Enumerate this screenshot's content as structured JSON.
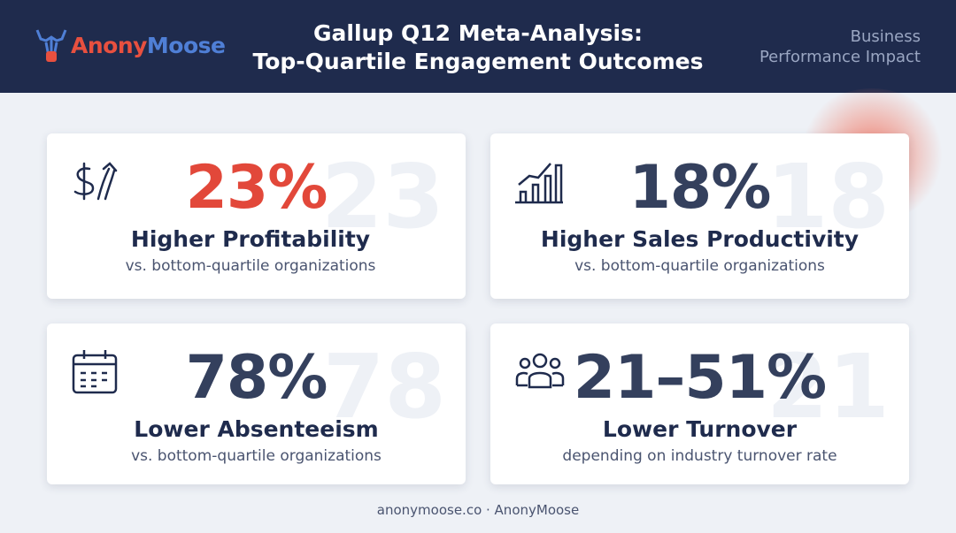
{
  "header": {
    "brand_first": "Anony",
    "brand_second": "Moose",
    "title_lines": [
      "Gallup Q12 Meta-Analysis:",
      "Top-Quartile Engagement Outcomes"
    ],
    "tag_lines": [
      "Business",
      "Performance Impact"
    ]
  },
  "cards": [
    {
      "stat": "23%",
      "watermark": "23",
      "label": "Higher Profitability",
      "sub": "vs. bottom-quartile organizations"
    },
    {
      "stat": "18%",
      "watermark": "18",
      "label": "Higher Sales Productivity",
      "sub": "vs. bottom-quartile organizations"
    },
    {
      "stat": "78%",
      "watermark": "78",
      "label": "Lower Absenteeism",
      "sub": "vs. bottom-quartile organizations"
    },
    {
      "stat": "21–51%",
      "watermark": "21",
      "label": "Lower Turnover",
      "sub": "depending on industry turnover rate"
    }
  ],
  "footer": "anonymoose.co · AnonyMoose"
}
